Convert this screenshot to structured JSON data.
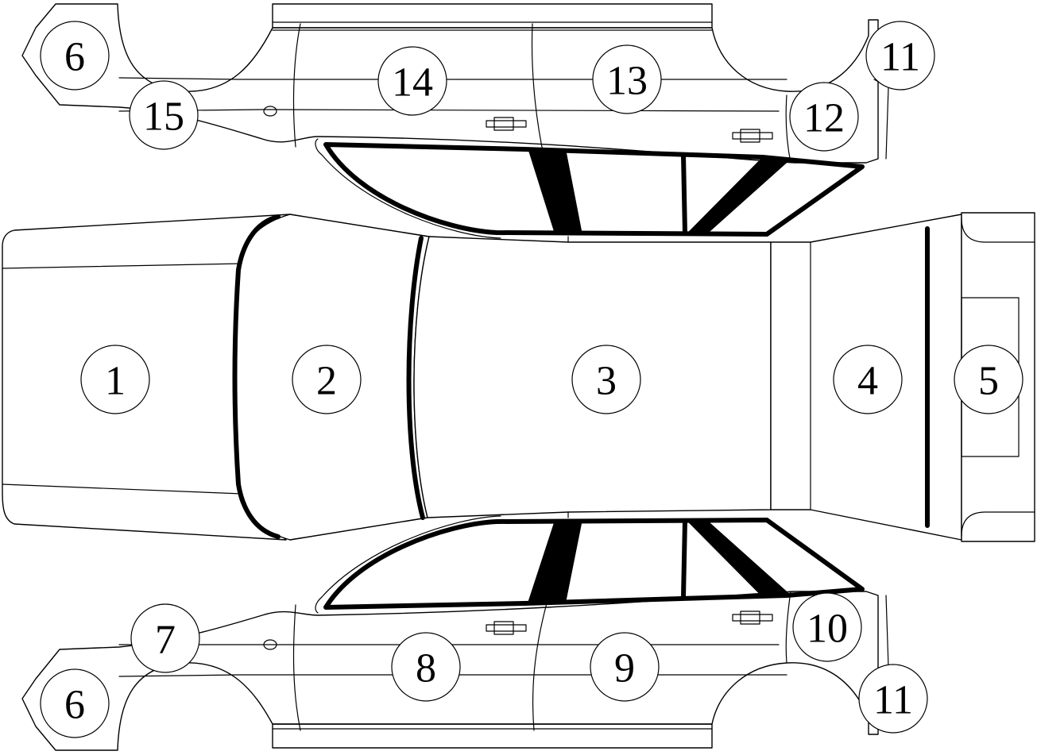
{
  "labels": {
    "p1": "1",
    "p2": "2",
    "p3": "3",
    "p4": "4",
    "p5": "5",
    "p6_top": "6",
    "p6_bottom": "6",
    "p7": "7",
    "p8": "8",
    "p9": "9",
    "p10": "10",
    "p11_top": "11",
    "p11_bottom": "11",
    "p12": "12",
    "p13": "13",
    "p14": "14",
    "p15": "15"
  }
}
